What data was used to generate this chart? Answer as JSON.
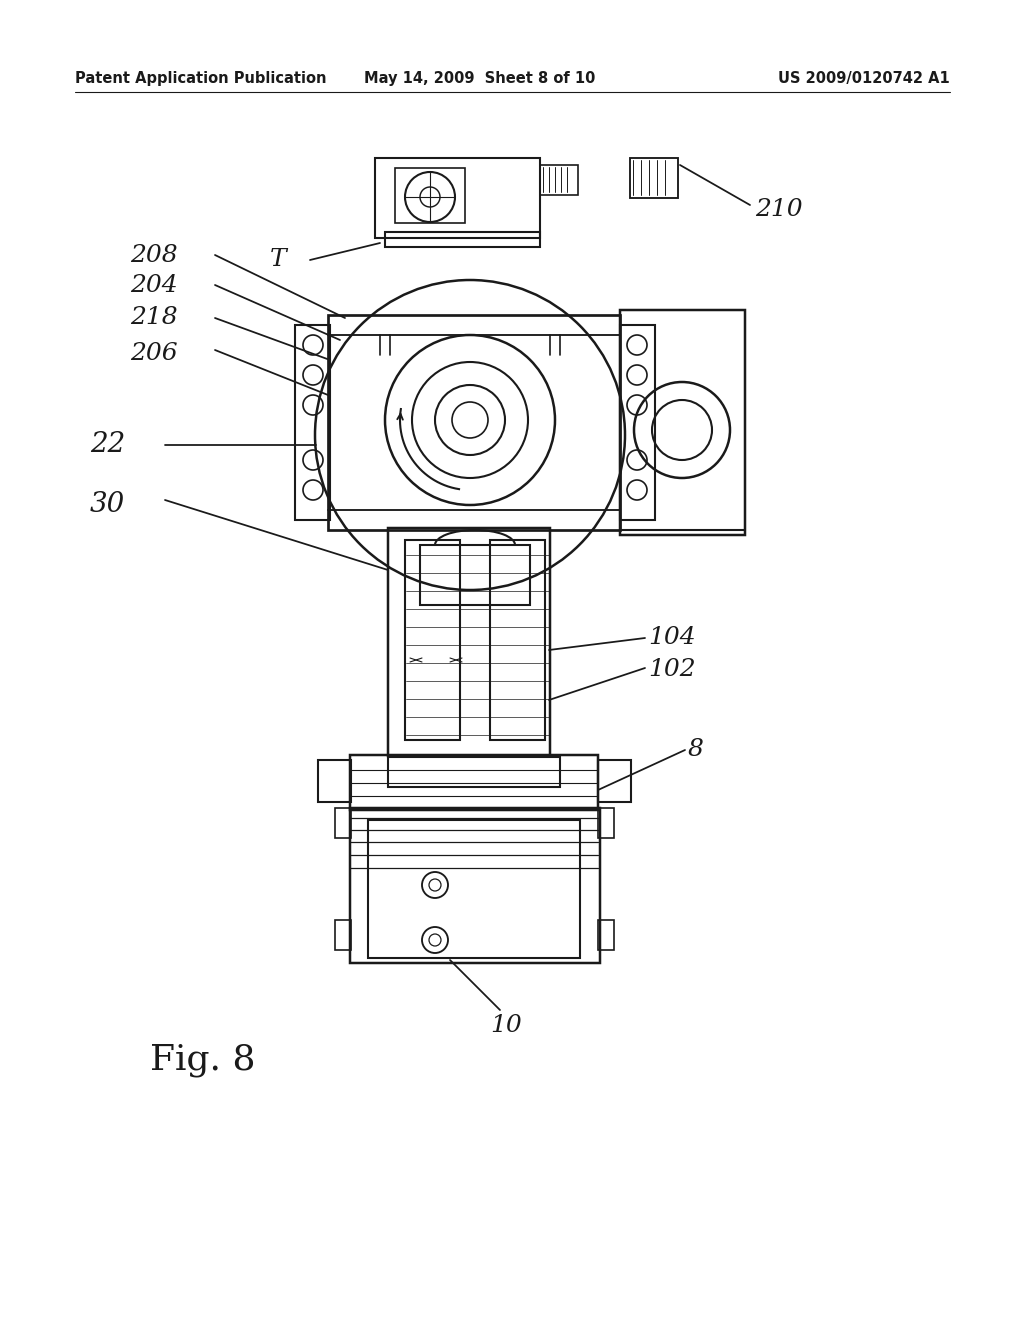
{
  "background_color": "#ffffff",
  "header_left": "Patent Application Publication",
  "header_center": "May 14, 2009  Sheet 8 of 10",
  "header_right": "US 2009/0120742 A1",
  "fig_label": "Fig. 8",
  "line_color": "#1a1a1a",
  "label_color": "#1a1a1a"
}
